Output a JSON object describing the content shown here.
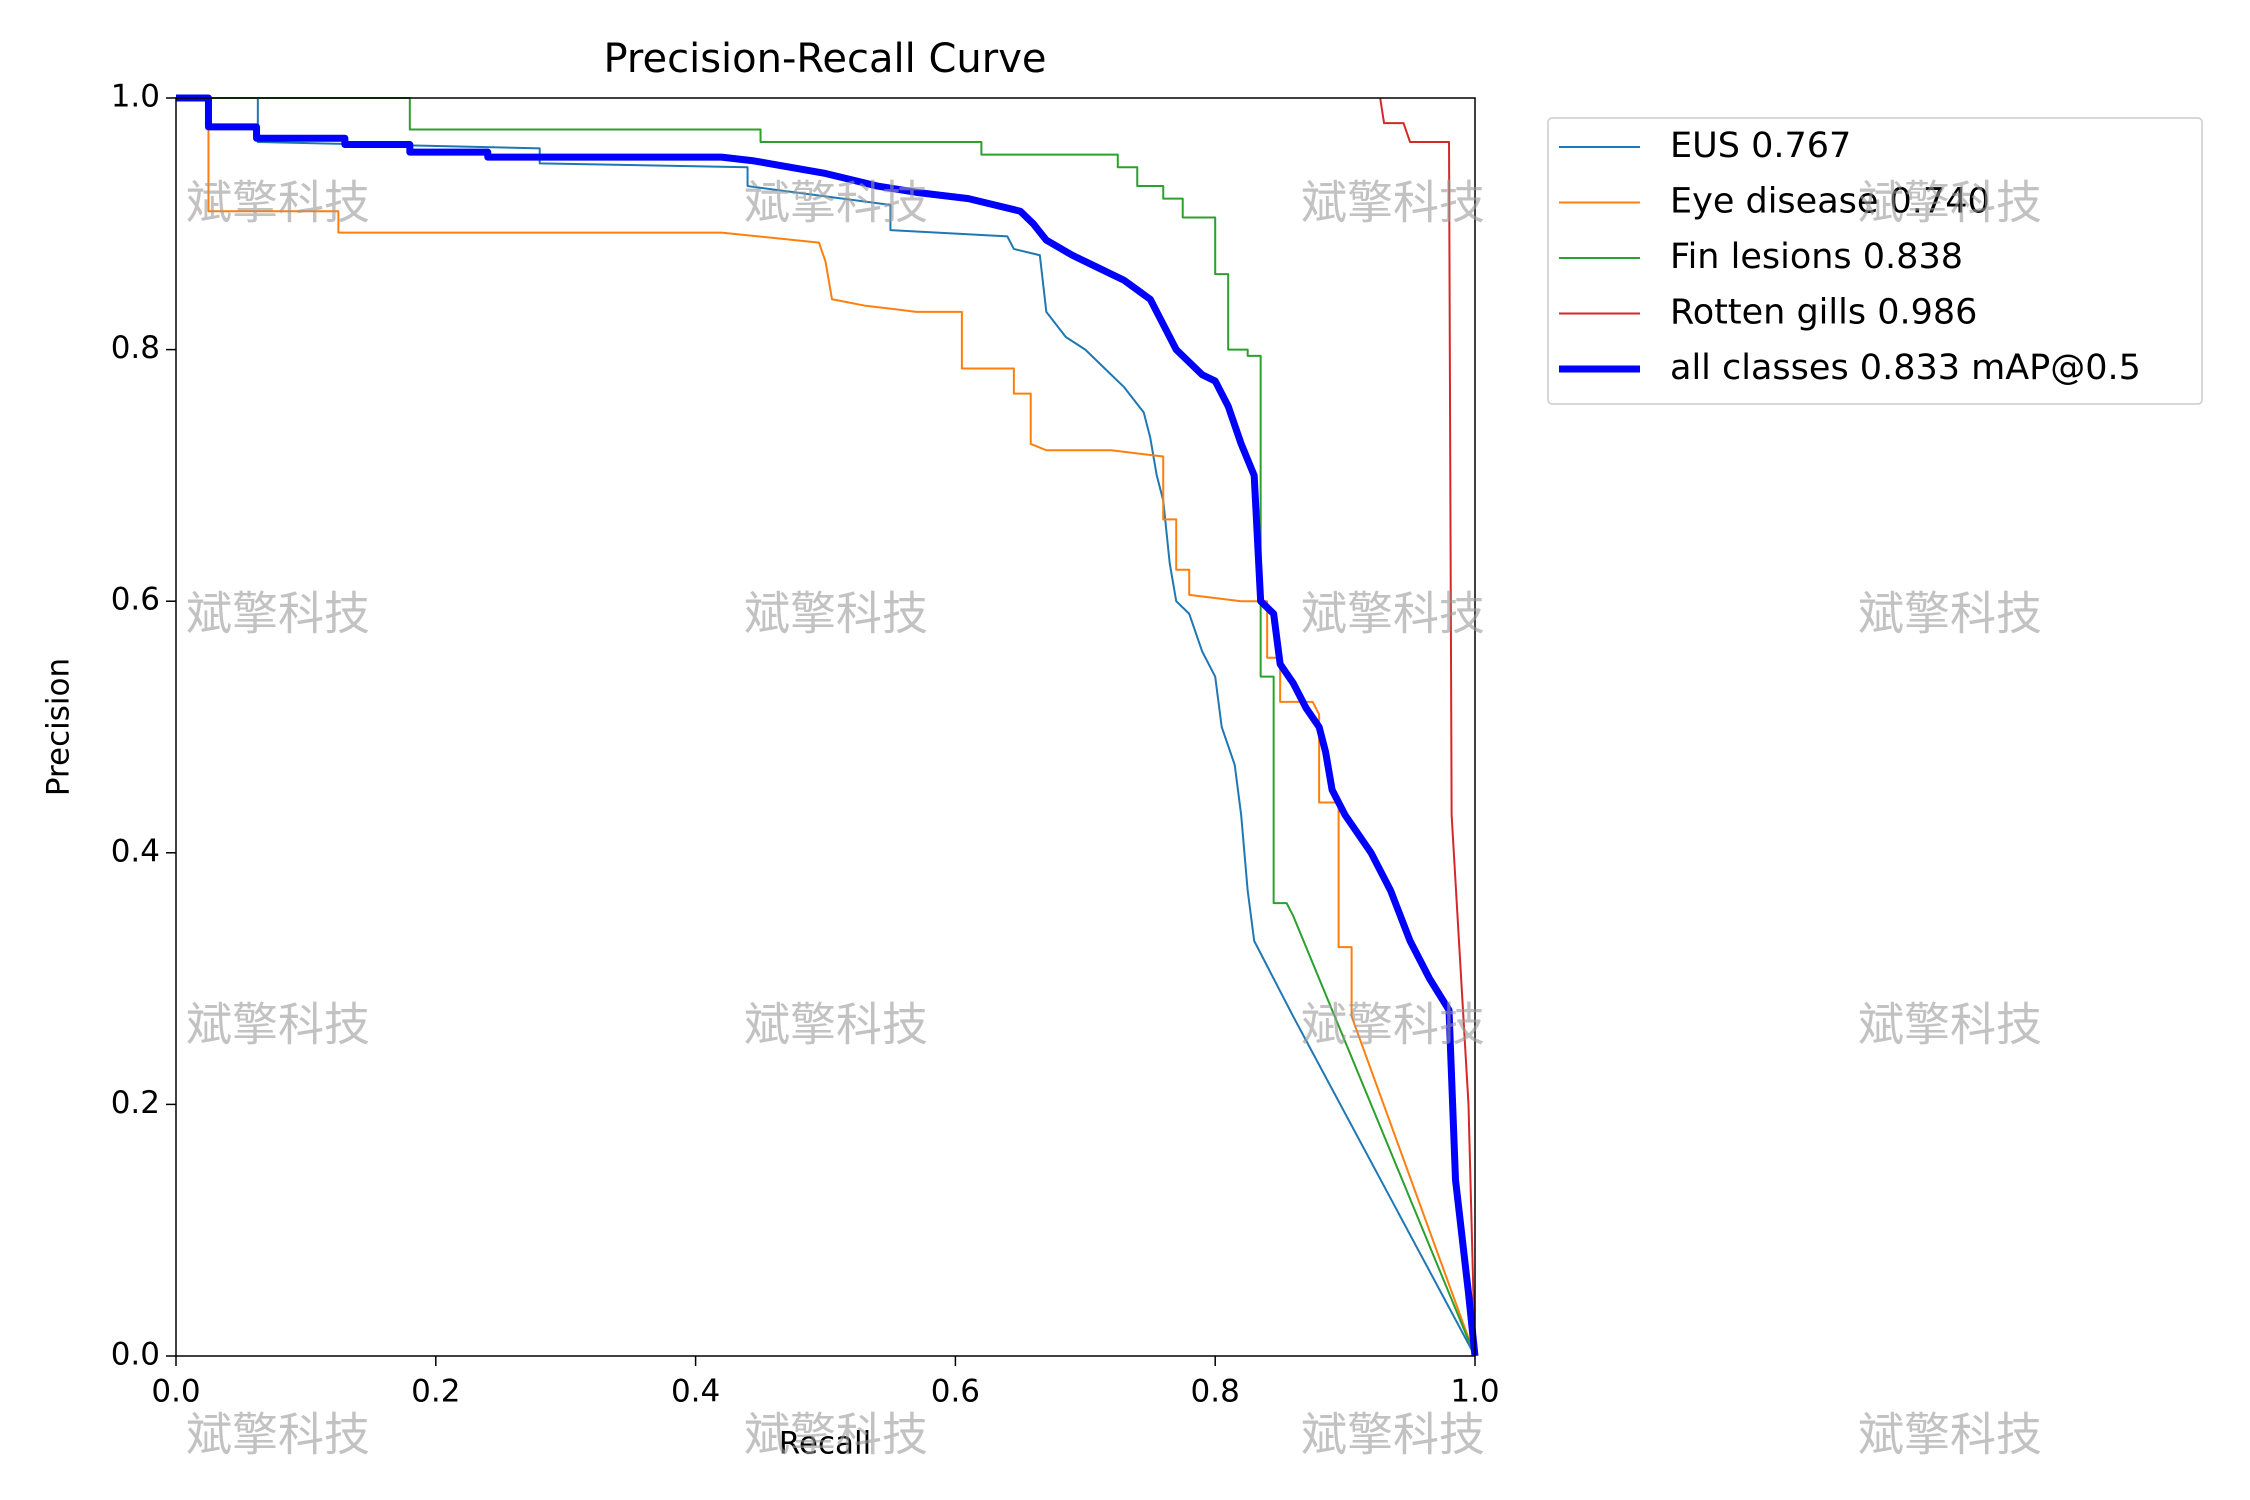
{
  "chart_data": {
    "type": "line",
    "title": "Precision-Recall Curve",
    "x_label": "Recall",
    "y_label": "Precision",
    "xlim": [
      0,
      1
    ],
    "ylim": [
      0,
      1
    ],
    "xticks": [
      {
        "value": 0,
        "label": "0.0"
      },
      0.2,
      0.4,
      0.6,
      0.8,
      {
        "value": 1,
        "label": "1.0"
      }
    ],
    "yticks": [
      {
        "value": 0,
        "label": "0.0"
      },
      0.2,
      0.4,
      0.6,
      0.8,
      {
        "value": 1,
        "label": "1.0"
      }
    ],
    "series": [
      {
        "name": "EUS 0.767",
        "color": "#1f77b4",
        "x": [
          0,
          0.063,
          0.063,
          0.28,
          0.28,
          0.44,
          0.44,
          0.55,
          0.55,
          0.64,
          0.645,
          0.665,
          0.67,
          0.685,
          0.7,
          0.715,
          0.73,
          0.745,
          0.75,
          0.755,
          0.76,
          0.765,
          0.77,
          0.775,
          0.78,
          0.79,
          0.8,
          0.805,
          0.815,
          0.82,
          0.825,
          0.83,
          0.84,
          0.85,
          0.86,
          1.0
        ],
        "values": [
          1,
          1,
          0.965,
          0.96,
          0.948,
          0.945,
          0.93,
          0.915,
          0.895,
          0.89,
          0.88,
          0.875,
          0.83,
          0.81,
          0.8,
          0.785,
          0.77,
          0.75,
          0.73,
          0.7,
          0.68,
          0.63,
          0.6,
          0.595,
          0.59,
          0.56,
          0.54,
          0.5,
          0.47,
          0.43,
          0.37,
          0.33,
          0.31,
          0.29,
          0.27,
          0
        ]
      },
      {
        "name": "Eye disease 0.740",
        "color": "#ff7f0e",
        "x": [
          0,
          0.025,
          0.025,
          0.125,
          0.125,
          0.42,
          0.495,
          0.5,
          0.505,
          0.53,
          0.57,
          0.605,
          0.605,
          0.645,
          0.645,
          0.658,
          0.658,
          0.67,
          0.72,
          0.76,
          0.76,
          0.77,
          0.77,
          0.78,
          0.78,
          0.82,
          0.84,
          0.84,
          0.85,
          0.85,
          0.875,
          0.88,
          0.88,
          0.895,
          0.895,
          0.905,
          0.905,
          1.0
        ],
        "values": [
          1,
          1,
          0.91,
          0.91,
          0.893,
          0.893,
          0.885,
          0.87,
          0.84,
          0.835,
          0.83,
          0.83,
          0.785,
          0.785,
          0.765,
          0.765,
          0.725,
          0.72,
          0.72,
          0.715,
          0.665,
          0.665,
          0.625,
          0.625,
          0.605,
          0.6,
          0.6,
          0.555,
          0.555,
          0.52,
          0.52,
          0.51,
          0.44,
          0.44,
          0.325,
          0.325,
          0.27,
          0
        ]
      },
      {
        "name": "Fin lesions 0.838",
        "color": "#2ca02c",
        "x": [
          0,
          0.18,
          0.18,
          0.45,
          0.45,
          0.62,
          0.62,
          0.725,
          0.725,
          0.74,
          0.74,
          0.76,
          0.76,
          0.775,
          0.775,
          0.8,
          0.8,
          0.81,
          0.81,
          0.825,
          0.825,
          0.835,
          0.835,
          0.845,
          0.845,
          0.855,
          0.86,
          1.0
        ],
        "values": [
          1,
          1,
          0.975,
          0.975,
          0.965,
          0.965,
          0.955,
          0.955,
          0.945,
          0.945,
          0.93,
          0.93,
          0.92,
          0.92,
          0.905,
          0.905,
          0.86,
          0.86,
          0.8,
          0.8,
          0.795,
          0.795,
          0.54,
          0.54,
          0.36,
          0.36,
          0.35,
          0
        ]
      },
      {
        "name": "Rotten gills 0.986",
        "color": "#d62728",
        "x": [
          0.927,
          0.93,
          0.945,
          0.95,
          0.98,
          0.982,
          0.995,
          1.0
        ],
        "values": [
          1,
          0.98,
          0.98,
          0.965,
          0.965,
          0.43,
          0.2,
          0
        ]
      },
      {
        "name": "all classes 0.833 mAP@0.5",
        "color": "#0000ff",
        "x": [
          0,
          0.025,
          0.025,
          0.062,
          0.062,
          0.13,
          0.13,
          0.18,
          0.18,
          0.24,
          0.24,
          0.42,
          0.445,
          0.5,
          0.54,
          0.57,
          0.61,
          0.65,
          0.66,
          0.67,
          0.69,
          0.71,
          0.73,
          0.75,
          0.76,
          0.77,
          0.79,
          0.8,
          0.81,
          0.82,
          0.83,
          0.835,
          0.845,
          0.85,
          0.86,
          0.87,
          0.88,
          0.885,
          0.89,
          0.9,
          0.92,
          0.935,
          0.95,
          0.965,
          0.98,
          0.985,
          0.995,
          1.0
        ],
        "values": [
          1,
          1,
          0.977,
          0.977,
          0.968,
          0.968,
          0.963,
          0.963,
          0.957,
          0.957,
          0.953,
          0.953,
          0.95,
          0.94,
          0.93,
          0.925,
          0.92,
          0.91,
          0.9,
          0.887,
          0.875,
          0.865,
          0.855,
          0.84,
          0.82,
          0.8,
          0.78,
          0.775,
          0.755,
          0.725,
          0.7,
          0.6,
          0.59,
          0.55,
          0.535,
          0.515,
          0.5,
          0.48,
          0.45,
          0.43,
          0.4,
          0.37,
          0.33,
          0.3,
          0.275,
          0.14,
          0.05,
          0
        ]
      }
    ]
  },
  "watermark": "斌擎科技"
}
